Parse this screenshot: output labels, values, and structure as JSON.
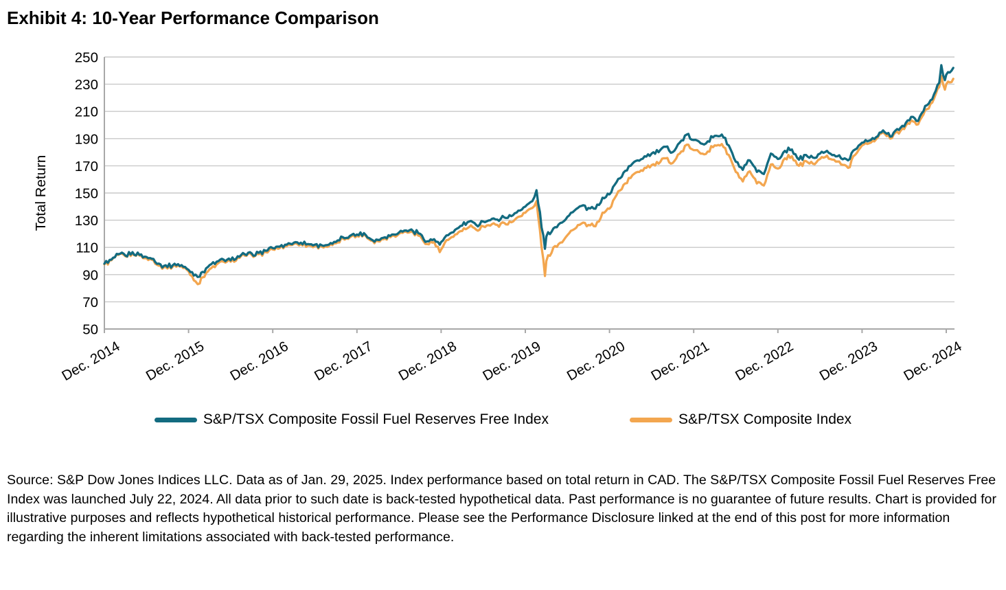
{
  "title": "Exhibit 4: 10-Year Performance Comparison",
  "chart": {
    "ylabel": "Total Return",
    "yticks": [
      50,
      70,
      90,
      110,
      130,
      150,
      170,
      190,
      210,
      230,
      250
    ],
    "xtick_labels": [
      "Dec. 2014",
      "Dec. 2015",
      "Dec. 2016",
      "Dec. 2017",
      "Dec. 2018",
      "Dec. 2019",
      "Dec. 2020",
      "Dec. 2021",
      "Dec. 2022",
      "Dec. 2023",
      "Dec. 2024"
    ],
    "colors": {
      "ffrf_line": "#136B80",
      "composite_line": "#F3A64F",
      "gridline": "#C9C9C9",
      "axis": "#A8A8A8",
      "text": "#000000"
    }
  },
  "legend": [
    {
      "label": "S&P/TSX Composite Fossil Fuel Reserves Free Index",
      "color": "#136B80"
    },
    {
      "label": "S&P/TSX Composite Index",
      "color": "#F3A64F"
    }
  ],
  "chart_data": {
    "type": "line",
    "title": "Exhibit 4: 10-Year Performance Comparison",
    "xlabel": "",
    "ylabel": "Total Return",
    "ylim": [
      50,
      250
    ],
    "xlim_months": [
      0,
      121
    ],
    "x_unit": "months since Dec. 2014 (fractional points mark intra-month peaks/troughs; series end Jan. 29, 2025)",
    "grid": "horizontal",
    "legend_position": "bottom-center",
    "x": [
      0,
      1,
      2,
      3,
      4,
      5,
      6,
      7,
      8,
      9,
      10,
      11,
      12,
      13,
      13.6,
      14,
      15,
      16,
      17,
      18,
      19,
      20,
      21,
      22,
      23,
      24,
      25,
      26,
      27,
      28,
      29,
      30,
      31,
      32,
      33,
      34,
      35,
      36,
      37,
      38,
      39,
      40,
      41,
      42,
      43,
      44,
      45,
      46,
      47,
      47.8,
      48,
      49,
      50,
      51,
      52,
      53,
      54,
      55,
      56,
      57,
      58,
      59,
      60,
      61,
      61.6,
      62.8,
      63,
      64,
      65,
      66,
      67,
      68,
      69,
      70,
      71,
      72,
      73,
      74,
      75,
      76,
      77,
      78,
      79,
      80,
      81,
      82,
      83,
      84,
      85,
      86,
      87,
      88,
      89,
      90,
      91,
      92,
      93,
      94,
      95,
      96,
      97,
      98,
      99,
      100,
      101,
      102,
      103,
      104,
      105,
      106,
      107,
      108,
      109,
      110,
      111,
      112,
      113,
      114,
      115,
      116,
      117,
      118,
      119,
      119.3,
      119.8,
      120,
      121
    ],
    "year_tick_months": [
      0,
      12,
      24,
      36,
      48,
      60,
      72,
      84,
      96,
      108,
      120
    ],
    "series": [
      {
        "name": "S&P/TSX Composite Fossil Fuel Reserves Free Index",
        "color": "#136B80",
        "values": [
          98,
          101,
          105,
          104,
          106.5,
          104.5,
          103,
          101.5,
          97.5,
          95.5,
          98,
          97,
          93.5,
          90,
          88.5,
          92,
          97,
          99.5,
          101,
          100.5,
          103.5,
          105,
          105.5,
          106,
          107.5,
          109.5,
          110.5,
          112,
          113.5,
          113.5,
          112.5,
          112,
          111.5,
          112,
          114,
          117.5,
          118.5,
          119.5,
          120.5,
          116,
          115.5,
          117.5,
          119.5,
          121,
          122.5,
          122,
          120,
          114.5,
          116,
          112,
          114,
          119,
          123,
          126,
          129,
          126.5,
          129,
          130,
          130.5,
          132,
          133,
          137,
          140,
          144,
          152,
          109,
          118,
          124,
          128,
          132.5,
          137,
          140.5,
          139,
          138.5,
          146.5,
          149,
          158,
          165,
          170,
          174,
          177,
          179,
          180,
          184,
          180,
          187,
          193,
          189,
          186.5,
          188,
          192,
          193,
          185,
          173,
          167,
          174,
          165.5,
          164,
          179,
          175,
          181,
          182,
          174.5,
          178,
          176,
          179,
          181,
          178,
          175.5,
          174,
          182,
          187,
          188.5,
          191,
          196,
          191.5,
          197,
          199,
          206,
          203,
          214,
          219,
          231,
          244,
          233,
          237,
          242
        ]
      },
      {
        "name": "S&P/TSX Composite Index",
        "color": "#F3A64F",
        "values": [
          97.5,
          100.5,
          104.5,
          103.5,
          105.5,
          104,
          102,
          100.5,
          96.5,
          94.5,
          97,
          96,
          92.5,
          85,
          83.5,
          88,
          94,
          97.5,
          99.5,
          99.5,
          102.5,
          104,
          104.5,
          105,
          106.5,
          108.5,
          109.5,
          111,
          112.5,
          112.5,
          111.5,
          111,
          110.5,
          111,
          113,
          116.5,
          117.5,
          118.5,
          119.5,
          115,
          114.5,
          116.5,
          118.5,
          120,
          121.5,
          121,
          118.5,
          112.5,
          114,
          106.5,
          108.5,
          115.5,
          119.5,
          122,
          125,
          123,
          125.5,
          126,
          126.5,
          128,
          128.5,
          132.5,
          135.5,
          139,
          144,
          89,
          100,
          110,
          113.5,
          119,
          123.5,
          127.5,
          126.5,
          125.5,
          135.5,
          138.5,
          148.5,
          156,
          161,
          165.5,
          168.5,
          170.5,
          171.5,
          175.5,
          172,
          179,
          185.5,
          181.5,
          179,
          180.5,
          185,
          186,
          178,
          165.5,
          158.5,
          166,
          157,
          155.5,
          171,
          168,
          175.5,
          177,
          170,
          173.5,
          171.5,
          175,
          177.5,
          174.5,
          171,
          168.5,
          178,
          185,
          186.5,
          189.5,
          194.5,
          190,
          195,
          197,
          203.5,
          200.5,
          211,
          216.5,
          228,
          236,
          226,
          230,
          234
        ]
      }
    ]
  },
  "source": {
    "text": "Source: S&P Dow Jones Indices LLC. Data as of Jan. 29, 2025. Index performance based on total return in CAD. The S&P/TSX Composite Fossil Fuel Reserves Free Index was launched July 22, 2024. All data prior to such date is back-tested hypothetical data. Past performance is no guarantee of future results. Chart is provided for illustrative purposes and reflects hypothetical historical performance. Please see the Performance Disclosure linked at the end of this post for more information regarding the inherent limitations associated with back-tested performance."
  }
}
